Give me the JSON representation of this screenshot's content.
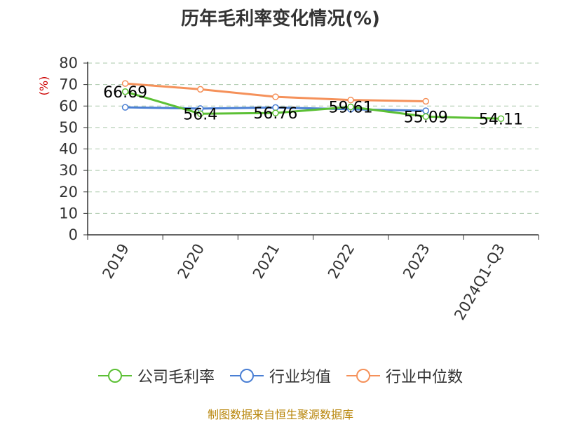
{
  "chart_data": {
    "type": "line",
    "title": "历年毛利率变化情况(%)",
    "ylabel": "(%)",
    "xlabel": "",
    "categories": [
      "2019",
      "2020",
      "2021",
      "2022",
      "2023",
      "2024Q1-Q3"
    ],
    "ylim": [
      0,
      80
    ],
    "yticks": [
      0,
      10,
      20,
      30,
      40,
      50,
      60,
      70,
      80
    ],
    "grid": true,
    "legend_position": "bottom",
    "series": [
      {
        "name": "公司毛利率",
        "color": "#5cc035",
        "values": [
          66.69,
          56.4,
          56.76,
          59.61,
          55.09,
          54.11
        ],
        "labels": [
          "66.69",
          "56.4",
          "56.76",
          "59.61",
          "55.09",
          "54.11"
        ]
      },
      {
        "name": "行业均值",
        "color": "#4a7fd4",
        "values": [
          59.4,
          58.8,
          59.3,
          58.5,
          57.8,
          null
        ]
      },
      {
        "name": "行业中位数",
        "color": "#f5915a",
        "values": [
          70.5,
          67.8,
          64.3,
          62.8,
          62.2,
          null
        ]
      }
    ]
  },
  "footer": {
    "source": "制图数据来自恒生聚源数据库"
  }
}
